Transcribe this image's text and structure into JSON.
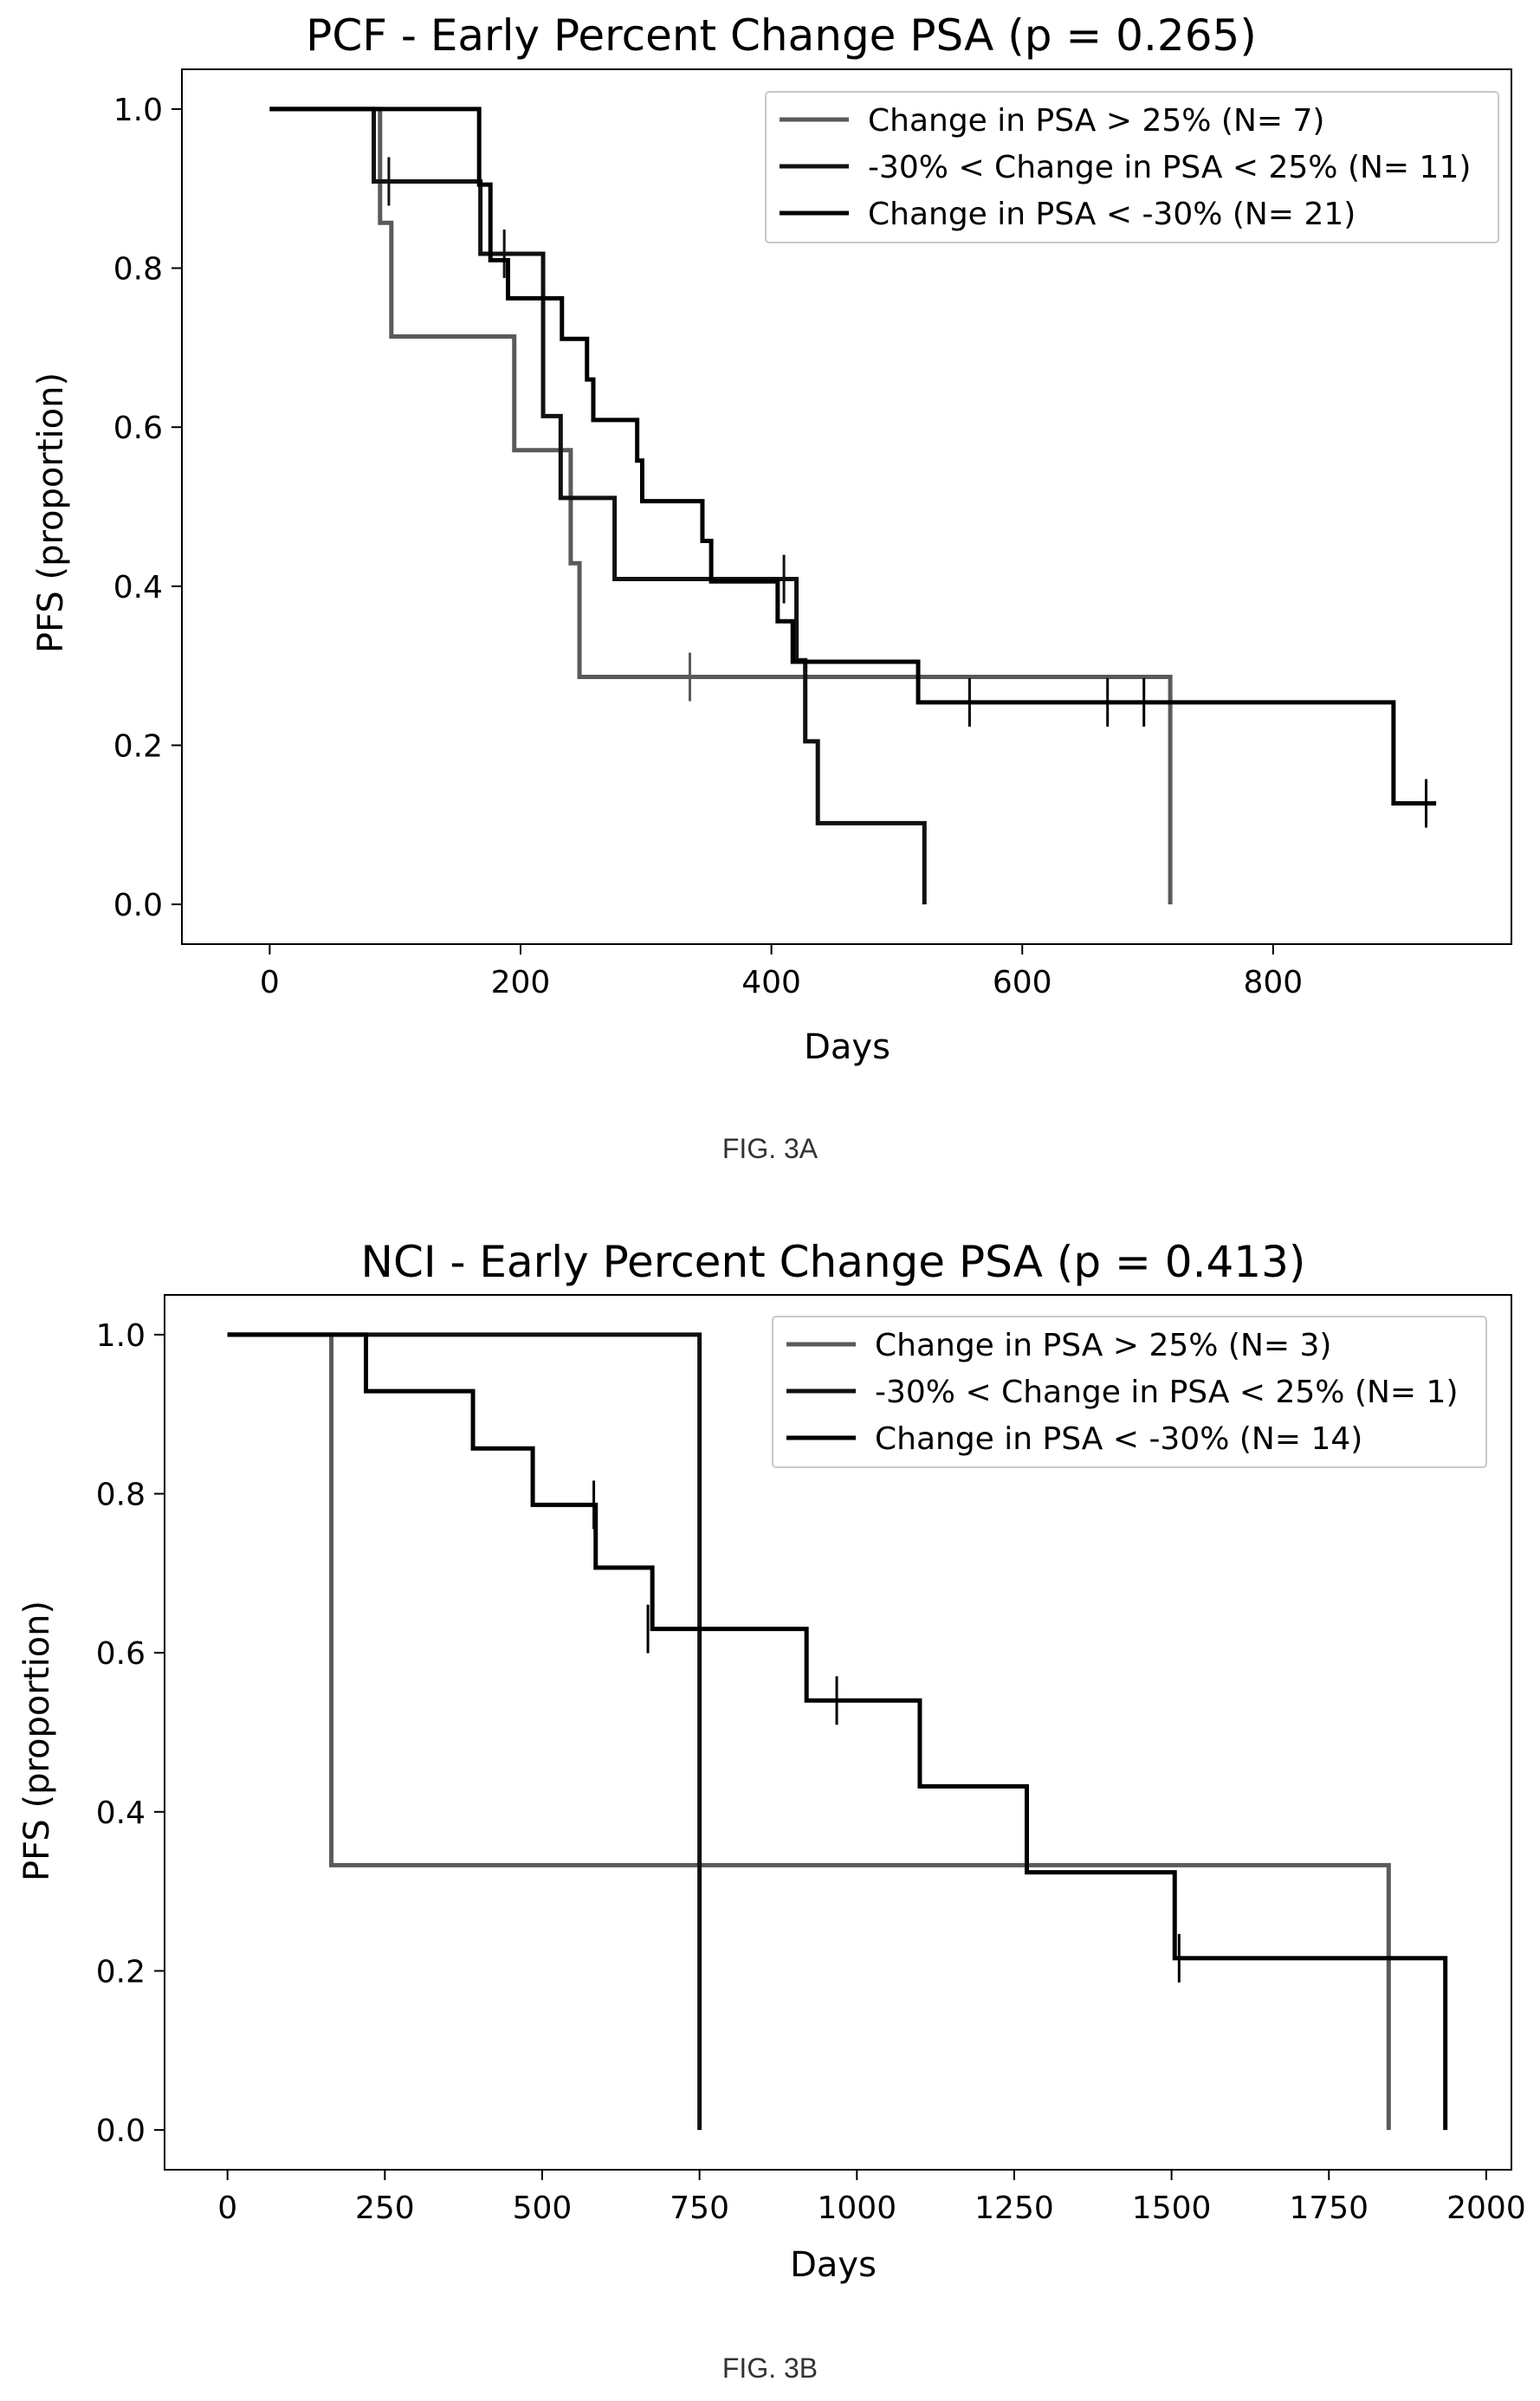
{
  "figures": [
    {
      "caption": "FIG. 3A"
    },
    {
      "caption": "FIG. 3B"
    }
  ],
  "chart_data": [
    {
      "type": "line",
      "subtype": "kaplan-meier-step",
      "title": "PCF - Early Percent Change PSA (p = 0.265)",
      "xlabel": "Days",
      "ylabel": "PFS (proportion)",
      "xlim": [
        -70,
        990
      ],
      "ylim": [
        -0.05,
        1.05
      ],
      "xticks": [
        0,
        200,
        400,
        600,
        800
      ],
      "xtick_labels": [
        "0",
        "200",
        "400",
        "600",
        "800"
      ],
      "yticks": [
        0.0,
        0.2,
        0.4,
        0.6,
        0.8,
        1.0
      ],
      "ytick_labels": [
        "0.0",
        "0.2",
        "0.4",
        "0.6",
        "0.8",
        "1.0"
      ],
      "grid": false,
      "legend": "top-right",
      "series": [
        {
          "name": "Change in PSA > 25% (N= 7)",
          "color": "#5a5a5a",
          "steps": [
            [
              0,
              1.0
            ],
            [
              88,
              0.857
            ],
            [
              97,
              0.714
            ],
            [
              195,
              0.571
            ],
            [
              240,
              0.429
            ],
            [
              247,
              0.286
            ],
            [
              718,
              0.0
            ]
          ],
          "end_x": 718,
          "censors": [
            [
              335,
              0.286
            ]
          ]
        },
        {
          "name": "-30% < Change in PSA < 25% (N= 11)",
          "color": "#111111",
          "steps": [
            [
              0,
              1.0
            ],
            [
              83,
              0.909
            ],
            [
              168,
              0.818
            ],
            [
              218,
              0.614
            ],
            [
              232,
              0.511
            ],
            [
              275,
              0.409
            ],
            [
              420,
              0.307
            ],
            [
              427,
              0.205
            ],
            [
              437,
              0.102
            ],
            [
              522,
              0.0
            ]
          ],
          "end_x": 522,
          "censors": [
            [
              95,
              0.909
            ],
            [
              187,
              0.818
            ],
            [
              410,
              0.409
            ]
          ]
        },
        {
          "name": "Change in PSA < -30% (N= 21)",
          "color": "#000000",
          "steps": [
            [
              0,
              1.0
            ],
            [
              167,
              0.905
            ],
            [
              176,
              0.81
            ],
            [
              190,
              0.762
            ],
            [
              233,
              0.711
            ],
            [
              253,
              0.66
            ],
            [
              258,
              0.609
            ],
            [
              293,
              0.558
            ],
            [
              297,
              0.507
            ],
            [
              345,
              0.457
            ],
            [
              352,
              0.406
            ],
            [
              405,
              0.356
            ],
            [
              417,
              0.305
            ],
            [
              517,
              0.254
            ],
            [
              896,
              0.127
            ]
          ],
          "end_x": 930,
          "censors": [
            [
              558,
              0.254
            ],
            [
              668,
              0.254
            ],
            [
              697,
              0.254
            ],
            [
              922,
              0.127
            ]
          ]
        }
      ]
    },
    {
      "type": "line",
      "subtype": "kaplan-meier-step",
      "title": "NCI - Early Percent Change PSA (p = 0.413)",
      "xlabel": "Days",
      "ylabel": "PFS (proportion)",
      "xlim": [
        -100,
        2040
      ],
      "ylim": [
        -0.05,
        1.05
      ],
      "xticks": [
        0,
        250,
        500,
        750,
        1000,
        1250,
        1500,
        1750,
        2000
      ],
      "xtick_labels": [
        "0",
        "250",
        "500",
        "750",
        "1000",
        "1250",
        "1500",
        "1750",
        "2000"
      ],
      "yticks": [
        0.0,
        0.2,
        0.4,
        0.6,
        0.8,
        1.0
      ],
      "ytick_labels": [
        "0.0",
        "0.2",
        "0.4",
        "0.6",
        "0.8",
        "1.0"
      ],
      "grid": false,
      "legend": "top-right",
      "series": [
        {
          "name": "Change in PSA > 25% (N= 3)",
          "color": "#5a5a5a",
          "steps": [
            [
              0,
              1.0
            ],
            [
              165,
              0.333
            ],
            [
              1845,
              0.0
            ]
          ],
          "end_x": 1845,
          "censors": []
        },
        {
          "name": "-30% < Change in PSA < 25% (N= 1)",
          "color": "#111111",
          "steps": [
            [
              0,
              1.0
            ],
            [
              750,
              0.0
            ]
          ],
          "end_x": 750,
          "censors": []
        },
        {
          "name": "Change in PSA < -30% (N= 14)",
          "color": "#000000",
          "steps": [
            [
              0,
              1.0
            ],
            [
              220,
              0.929
            ],
            [
              390,
              0.857
            ],
            [
              485,
              0.786
            ],
            [
              585,
              0.707
            ],
            [
              675,
              0.63
            ],
            [
              920,
              0.54
            ],
            [
              1100,
              0.432
            ],
            [
              1270,
              0.324
            ],
            [
              1505,
              0.216
            ],
            [
              1935,
              0.0
            ]
          ],
          "end_x": 1935,
          "censors": [
            [
              582,
              0.786
            ],
            [
              668,
              0.63
            ],
            [
              968,
              0.54
            ],
            [
              1512,
              0.216
            ]
          ]
        }
      ]
    }
  ]
}
